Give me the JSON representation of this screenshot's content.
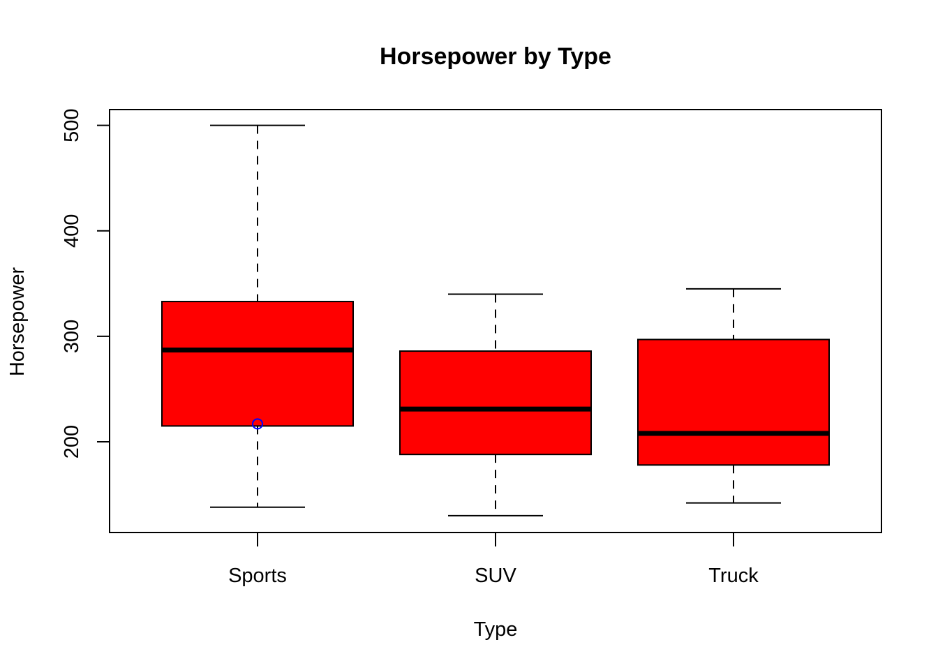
{
  "chart_data": {
    "type": "box",
    "title": "Horsepower by Type",
    "xlabel": "Type",
    "ylabel": "Horsepower",
    "categories": [
      "Sports",
      "SUV",
      "Truck"
    ],
    "yticks": [
      200,
      300,
      400,
      500
    ],
    "ylim": [
      114,
      515
    ],
    "boxes": [
      {
        "category": "Sports",
        "min": 138,
        "q1": 215,
        "median": 287,
        "q3": 333,
        "max": 500,
        "mean": 217
      },
      {
        "category": "SUV",
        "min": 130,
        "q1": 188,
        "median": 231,
        "q3": 286,
        "max": 340
      },
      {
        "category": "Truck",
        "min": 142,
        "q1": 178,
        "median": 208,
        "q3": 297,
        "max": 345
      }
    ],
    "grid": false,
    "legend": "none",
    "colors": {
      "box_fill": "#ff0000",
      "outline": "#000000",
      "mean_marker": "#0000ff"
    }
  }
}
